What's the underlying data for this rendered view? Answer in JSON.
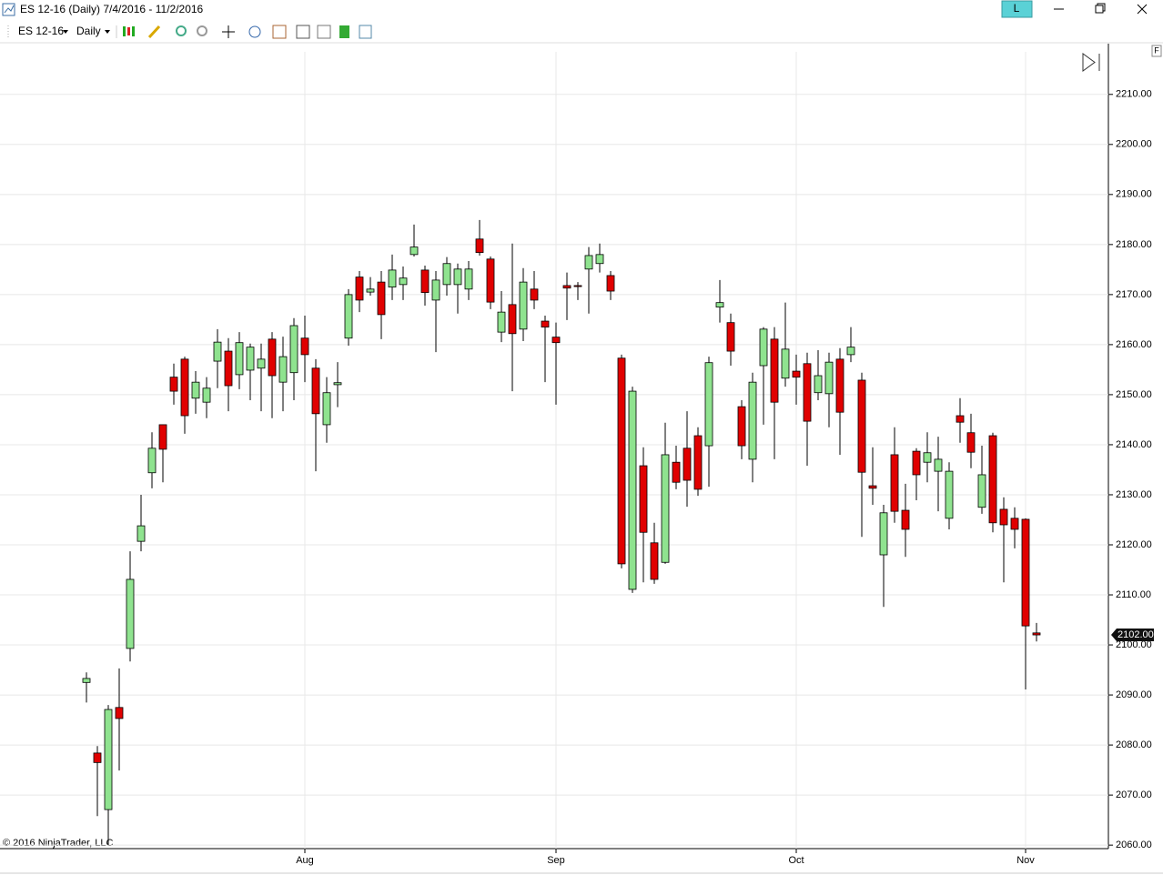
{
  "window": {
    "title": "ES 12-16 (Daily)  7/4/2016 - 11/2/2016",
    "instrument": "ES 12-16",
    "interval": "Daily",
    "account_button": "L",
    "panel_button": "F",
    "copyright": "© 2016 NinjaTrader, LLC"
  },
  "chart_data": {
    "type": "candlestick",
    "categories": [
      null,
      null,
      null,
      null,
      null,
      null,
      null,
      null,
      null,
      null,
      null,
      null,
      null,
      null,
      null,
      null,
      null,
      null,
      null,
      null,
      "Aug",
      null,
      null,
      null,
      null,
      null,
      null,
      null,
      null,
      null,
      null,
      null,
      null,
      null,
      null,
      null,
      null,
      null,
      null,
      null,
      null,
      null,
      null,
      "Sep",
      null,
      null,
      null,
      null,
      null,
      null,
      null,
      null,
      null,
      null,
      null,
      null,
      null,
      null,
      null,
      null,
      null,
      null,
      null,
      null,
      null,
      "Oct",
      null,
      null,
      null,
      null,
      null,
      null,
      null,
      null,
      null,
      null,
      null,
      null,
      null,
      null,
      null,
      null,
      null,
      null,
      null,
      null,
      "Nov",
      null
    ],
    "open": [
      2092.5,
      2078.4,
      2067.1,
      2087.5,
      2099.3,
      2120.7,
      2134.4,
      2144,
      2153.5,
      2157.1,
      2149.3,
      2148.5,
      2156.7,
      2158.7,
      2154,
      2154.9,
      2155.3,
      2161.1,
      2152.5,
      2154.4,
      2161.3,
      2155.3,
      2144,
      2152,
      2161.3,
      2173.5,
      2170.5,
      2172.5,
      2171.5,
      2172,
      2178,
      2174.9,
      2168.9,
      2172,
      2172,
      2171.1,
      2181.1,
      2177.1,
      2162.5,
      2168,
      2163.1,
      2171.1,
      2164.7,
      2161.5,
      2171.8,
      2171.8,
      2175.1,
      2176.2,
      2173.8,
      2157.3,
      2111.1,
      2135.8,
      2120.4,
      2116.5,
      2136.5,
      2139.3,
      2141.8,
      2139.8,
      2167.5,
      2164.4,
      2147.6,
      2137.1,
      2155.8,
      2161.1,
      2153.3,
      2154.7,
      2156.2,
      2150.4,
      2150.2,
      2157.1,
      2158,
      2152.9,
      2131.8,
      2118,
      2138,
      2126.9,
      2138.7,
      2136.5,
      2134.7,
      2125.3,
      2145.8,
      2142.4,
      2127.5,
      2141.8,
      2127.1,
      2125.3,
      2125.1,
      2102.4
    ],
    "high": [
      2094.5,
      2079.8,
      2088,
      2095.3,
      2118.7,
      2130,
      2142.5,
      2144,
      2156.2,
      2157.6,
      2154.7,
      2153.5,
      2163.1,
      2161.3,
      2162.5,
      2160.2,
      2160.2,
      2162.5,
      2161.6,
      2165.3,
      2165.8,
      2157.1,
      2153.5,
      2156.5,
      2171.1,
      2174.7,
      2173.5,
      2174.7,
      2178,
      2175.6,
      2184,
      2175.8,
      2174.7,
      2177.5,
      2176.2,
      2176.7,
      2184.9,
      2177.6,
      2170.7,
      2180.2,
      2175.3,
      2174.7,
      2165.8,
      2164.4,
      2174.4,
      2172.5,
      2179.5,
      2180.2,
      2174.7,
      2158,
      2151.6,
      2139.5,
      2124.4,
      2144.4,
      2139.8,
      2146.7,
      2143.5,
      2157.6,
      2172.9,
      2166.2,
      2148.9,
      2154.4,
      2163.5,
      2163.5,
      2168.4,
      2158,
      2158.4,
      2158.9,
      2158.4,
      2159.3,
      2163.5,
      2154.4,
      2139.5,
      2128,
      2143.5,
      2132.2,
      2139.3,
      2142.5,
      2141.6,
      2136.5,
      2149.3,
      2146.2,
      2139.8,
      2142.4,
      2129.5,
      2127.5,
      2125.3,
      2104.4
    ],
    "low": [
      2088.5,
      2065.8,
      2060,
      2074.9,
      2096.7,
      2118.7,
      2131.3,
      2132.5,
      2148,
      2142.2,
      2146.2,
      2145.3,
      2151.3,
      2146.7,
      2151.1,
      2148.9,
      2146.7,
      2145.3,
      2146.7,
      2148.9,
      2152.5,
      2134.7,
      2140.4,
      2147.5,
      2159.8,
      2166.5,
      2169.8,
      2161.1,
      2168.9,
      2168.9,
      2177.6,
      2167.8,
      2158.5,
      2169.8,
      2166.2,
      2168.9,
      2177.8,
      2167.1,
      2160.5,
      2150.7,
      2160.7,
      2167.1,
      2152.5,
      2148,
      2164.9,
      2168.9,
      2166.2,
      2174.4,
      2168.9,
      2115.3,
      2110.4,
      2112.5,
      2112.2,
      2116.2,
      2131.1,
      2127.6,
      2129.8,
      2131.6,
      2164.4,
      2155.8,
      2137.1,
      2132.5,
      2144,
      2137.1,
      2151.6,
      2148,
      2135.8,
      2148.9,
      2143.5,
      2138,
      2156.5,
      2121.6,
      2128,
      2107.6,
      2124.4,
      2117.6,
      2128.9,
      2132.5,
      2126.7,
      2123.1,
      2140.4,
      2135.3,
      2126.2,
      2122.5,
      2112.5,
      2119.3,
      2091.1,
      2100.7
    ],
    "close": [
      2093.3,
      2076.5,
      2087.1,
      2085.3,
      2113.1,
      2123.8,
      2139.3,
      2139.1,
      2150.7,
      2145.8,
      2152.5,
      2151.3,
      2160.5,
      2151.8,
      2160.4,
      2159.5,
      2157.1,
      2153.8,
      2157.6,
      2163.8,
      2158,
      2146.2,
      2150.4,
      2152.4,
      2170,
      2168.9,
      2171.1,
      2166,
      2174.9,
      2173.3,
      2179.5,
      2170.4,
      2172.9,
      2176.2,
      2175.1,
      2175.1,
      2178.4,
      2168.5,
      2166.5,
      2162.2,
      2172.5,
      2168.9,
      2163.5,
      2160.4,
      2171.3,
      2171.6,
      2177.8,
      2178,
      2170.7,
      2116.2,
      2150.7,
      2122.5,
      2113.1,
      2138,
      2132.5,
      2132.9,
      2131.1,
      2156.4,
      2168.4,
      2158.7,
      2139.8,
      2152.5,
      2163.1,
      2148.5,
      2159.1,
      2153.5,
      2144.7,
      2153.8,
      2156.5,
      2146.5,
      2159.5,
      2134.5,
      2131.3,
      2126.4,
      2126.7,
      2123.1,
      2134,
      2138.4,
      2137.1,
      2134.7,
      2144.5,
      2138.5,
      2134,
      2124.4,
      2124,
      2123.1,
      2103.8,
      2102
    ],
    "up_color": "#8fe38f",
    "down_color": "#e00000",
    "wick_color": "#000000",
    "ylim": [
      2059.3,
      2218.5
    ],
    "yticks": [
      {
        "value": 2060,
        "label": "2060.00"
      },
      {
        "value": 2070,
        "label": "2070.00"
      },
      {
        "value": 2080,
        "label": "2080.00"
      },
      {
        "value": 2090,
        "label": "2090.00"
      },
      {
        "value": 2100,
        "label": "2100.00"
      },
      {
        "value": 2110,
        "label": "2110.00"
      },
      {
        "value": 2120,
        "label": "2120.00"
      },
      {
        "value": 2130,
        "label": "2130.00"
      },
      {
        "value": 2140,
        "label": "2140.00"
      },
      {
        "value": 2150,
        "label": "2150.00"
      },
      {
        "value": 2160,
        "label": "2160.00"
      },
      {
        "value": 2170,
        "label": "2170.00"
      },
      {
        "value": 2180,
        "label": "2180.00"
      },
      {
        "value": 2190,
        "label": "2190.00"
      },
      {
        "value": 2200,
        "label": "2200.00"
      },
      {
        "value": 2210,
        "label": "2210.00"
      }
    ],
    "last_price": {
      "value": 2102,
      "label": "2102.00"
    },
    "grid": true
  }
}
